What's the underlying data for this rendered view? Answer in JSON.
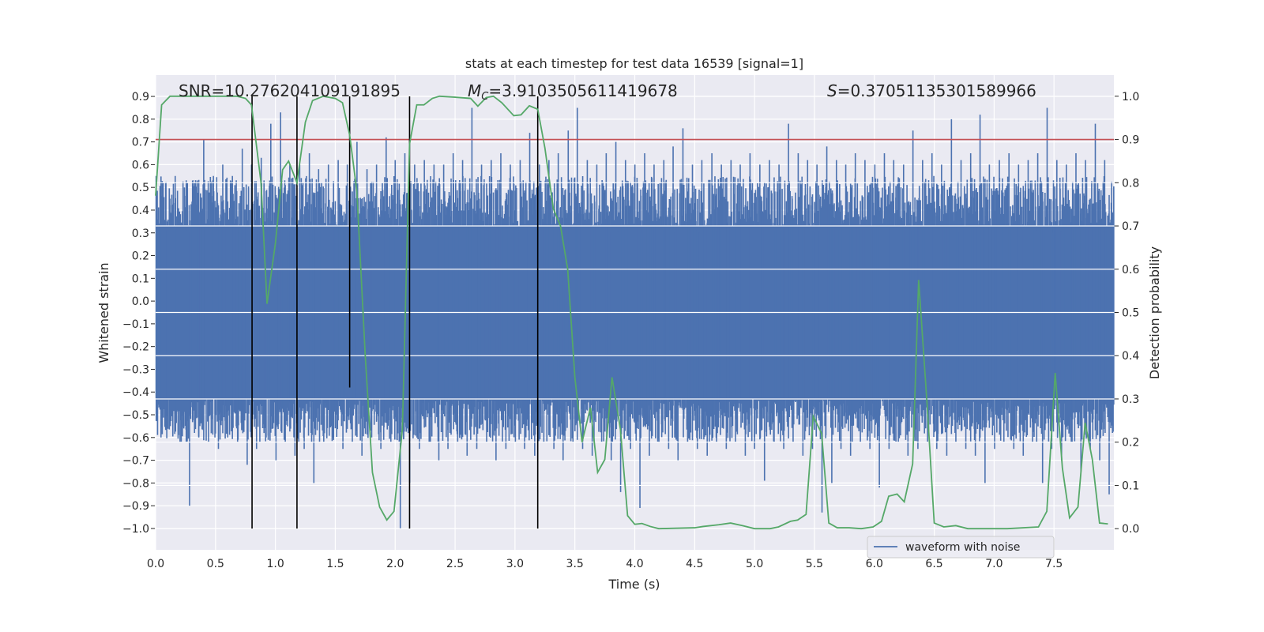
{
  "chart_data": {
    "type": "line",
    "title": "stats at each timestep for test data 16539 [signal=1]",
    "xlabel": "Time (s)",
    "ylabel": "Whitened strain",
    "ylabel_right": "Detection probability",
    "xlim": [
      0,
      8
    ],
    "ylim": [
      -1.094,
      0.994
    ],
    "ylim_right": [
      -0.049,
      1.049
    ],
    "xticks": [
      "0.0",
      "0.5",
      "1.0",
      "1.5",
      "2.0",
      "2.5",
      "3.0",
      "3.5",
      "4.0",
      "4.5",
      "5.0",
      "5.5",
      "6.0",
      "6.5",
      "7.0",
      "7.5"
    ],
    "yticks": [
      "0.9",
      "0.8",
      "0.7",
      "0.6",
      "0.5",
      "0.4",
      "0.3",
      "0.2",
      "0.1",
      "0.0",
      "−0.1",
      "−0.2",
      "−0.3",
      "−0.4",
      "−0.5",
      "−0.6",
      "−0.7",
      "−0.8",
      "−0.9",
      "−1.0"
    ],
    "yticks_right": [
      "1.0",
      "0.9",
      "0.8",
      "0.7",
      "0.6",
      "0.5",
      "0.4",
      "0.3",
      "0.2",
      "0.1",
      "0.0"
    ],
    "grid": true,
    "background": "#eaeaf2",
    "annotations": {
      "snr": "SNR=10.276204109191895",
      "mc_symbol": "M",
      "mc_sub": "C",
      "mc_value": "=3.9103505611419678",
      "s_symbol": "S",
      "s_value": "=0.37051135301589966"
    },
    "legend": {
      "placement": "lower-right",
      "entries": [
        "waveform with noise"
      ]
    },
    "waveform": {
      "name": "waveform with noise",
      "color": "#4c72b0",
      "bin_width_s": 0.08,
      "bin_max": [
        0.55,
        0.52,
        0.55,
        0.5,
        0.52,
        0.71,
        0.55,
        0.6,
        0.55,
        0.67,
        0.6,
        0.63,
        0.78,
        0.83,
        0.6,
        0.6,
        0.65,
        0.58,
        0.6,
        0.62,
        0.6,
        0.7,
        0.58,
        0.6,
        0.72,
        0.62,
        0.65,
        0.6,
        0.62,
        0.6,
        0.6,
        0.65,
        0.62,
        0.85,
        0.6,
        0.62,
        0.65,
        0.6,
        0.62,
        0.74,
        0.6,
        0.62,
        0.65,
        0.75,
        0.85,
        0.62,
        0.6,
        0.65,
        0.7,
        0.62,
        0.6,
        0.65,
        0.6,
        0.62,
        0.68,
        0.76,
        0.6,
        0.62,
        0.65,
        0.6,
        0.62,
        0.6,
        0.65,
        0.6,
        0.62,
        0.6,
        0.78,
        0.65,
        0.62,
        0.6,
        0.68,
        0.62,
        0.6,
        0.65,
        0.62,
        0.6,
        0.65,
        0.62,
        0.6,
        0.75,
        0.62,
        0.65,
        0.6,
        0.8,
        0.62,
        0.65,
        0.82,
        0.6,
        0.62,
        0.65,
        0.6,
        0.62,
        0.65,
        0.85,
        0.62,
        0.6,
        0.65,
        0.62,
        0.78,
        0.62
      ],
      "bin_min": [
        -0.6,
        -0.55,
        -0.62,
        -0.9,
        -0.6,
        -0.62,
        -0.65,
        -0.6,
        -0.62,
        -0.72,
        -0.65,
        -0.6,
        -0.7,
        -0.62,
        -0.68,
        -0.65,
        -0.8,
        -0.62,
        -0.6,
        -0.65,
        -0.62,
        -0.68,
        -0.6,
        -0.65,
        -0.62,
        -1.0,
        -0.8,
        -0.65,
        -0.62,
        -0.7,
        -0.65,
        -0.62,
        -0.68,
        -0.65,
        -0.62,
        -0.7,
        -0.65,
        -0.62,
        -0.65,
        -0.68,
        -0.62,
        -0.65,
        -0.7,
        -0.62,
        -0.65,
        -0.68,
        -0.62,
        -0.7,
        -0.84,
        -0.65,
        -0.91,
        -0.68,
        -0.62,
        -0.65,
        -0.7,
        -0.62,
        -0.65,
        -0.68,
        -0.62,
        -0.65,
        -0.62,
        -0.68,
        -0.65,
        -0.79,
        -0.62,
        -0.65,
        -0.62,
        -0.68,
        -0.65,
        -0.93,
        -0.8,
        -0.65,
        -0.68,
        -0.62,
        -0.65,
        -0.82,
        -0.65,
        -0.62,
        -0.68,
        -0.65,
        -0.62,
        -0.65,
        -0.68,
        -0.62,
        -0.65,
        -0.68,
        -0.8,
        -0.65,
        -0.62,
        -0.65,
        -0.68,
        -0.62,
        -0.8,
        -0.65,
        -0.7,
        -0.62,
        -0.75,
        -0.65,
        -0.7,
        -0.85
      ]
    },
    "detection_probability": {
      "color": "#55a868",
      "points": [
        [
          0.0,
          0.77
        ],
        [
          0.05,
          0.98
        ],
        [
          0.12,
          1.0
        ],
        [
          0.68,
          1.0
        ],
        [
          0.75,
          0.995
        ],
        [
          0.8,
          0.98
        ],
        [
          0.88,
          0.8
        ],
        [
          0.93,
          0.52
        ],
        [
          1.0,
          0.66
        ],
        [
          1.06,
          0.83
        ],
        [
          1.11,
          0.85
        ],
        [
          1.18,
          0.8
        ],
        [
          1.25,
          0.94
        ],
        [
          1.31,
          0.99
        ],
        [
          1.4,
          1.0
        ],
        [
          1.5,
          0.995
        ],
        [
          1.56,
          0.985
        ],
        [
          1.62,
          0.91
        ],
        [
          1.68,
          0.78
        ],
        [
          1.75,
          0.4
        ],
        [
          1.81,
          0.13
        ],
        [
          1.87,
          0.05
        ],
        [
          1.93,
          0.02
        ],
        [
          1.99,
          0.04
        ],
        [
          2.06,
          0.23
        ],
        [
          2.12,
          0.89
        ],
        [
          2.18,
          0.98
        ],
        [
          2.24,
          0.98
        ],
        [
          2.31,
          0.995
        ],
        [
          2.37,
          1.0
        ],
        [
          2.49,
          0.998
        ],
        [
          2.63,
          0.995
        ],
        [
          2.69,
          0.977
        ],
        [
          2.76,
          0.997
        ],
        [
          2.82,
          1.0
        ],
        [
          2.89,
          0.985
        ],
        [
          2.99,
          0.955
        ],
        [
          3.05,
          0.957
        ],
        [
          3.12,
          0.978
        ],
        [
          3.19,
          0.97
        ],
        [
          3.25,
          0.88
        ],
        [
          3.32,
          0.74
        ],
        [
          3.38,
          0.7
        ],
        [
          3.44,
          0.6
        ],
        [
          3.5,
          0.35
        ],
        [
          3.56,
          0.2
        ],
        [
          3.63,
          0.28
        ],
        [
          3.69,
          0.13
        ],
        [
          3.75,
          0.16
        ],
        [
          3.81,
          0.35
        ],
        [
          3.88,
          0.23
        ],
        [
          3.94,
          0.03
        ],
        [
          4.0,
          0.01
        ],
        [
          4.06,
          0.012
        ],
        [
          4.13,
          0.005
        ],
        [
          4.2,
          0.0
        ],
        [
          4.5,
          0.002
        ],
        [
          4.57,
          0.005
        ],
        [
          4.7,
          0.009
        ],
        [
          4.8,
          0.013
        ],
        [
          4.9,
          0.007
        ],
        [
          5.0,
          0.0
        ],
        [
          5.13,
          0.0
        ],
        [
          5.2,
          0.004
        ],
        [
          5.3,
          0.017
        ],
        [
          5.36,
          0.02
        ],
        [
          5.43,
          0.033
        ],
        [
          5.49,
          0.26
        ],
        [
          5.56,
          0.22
        ],
        [
          5.62,
          0.013
        ],
        [
          5.69,
          0.002
        ],
        [
          5.79,
          0.002
        ],
        [
          5.89,
          0.0
        ],
        [
          5.99,
          0.004
        ],
        [
          6.06,
          0.017
        ],
        [
          6.12,
          0.075
        ],
        [
          6.19,
          0.08
        ],
        [
          6.25,
          0.062
        ],
        [
          6.32,
          0.15
        ],
        [
          6.37,
          0.575
        ],
        [
          6.44,
          0.29
        ],
        [
          6.5,
          0.013
        ],
        [
          6.58,
          0.004
        ],
        [
          6.68,
          0.007
        ],
        [
          6.78,
          0.0
        ],
        [
          7.11,
          0.0
        ],
        [
          7.37,
          0.004
        ],
        [
          7.44,
          0.04
        ],
        [
          7.51,
          0.36
        ],
        [
          7.57,
          0.14
        ],
        [
          7.63,
          0.025
        ],
        [
          7.7,
          0.05
        ],
        [
          7.76,
          0.245
        ],
        [
          7.82,
          0.16
        ],
        [
          7.88,
          0.013
        ],
        [
          7.95,
          0.011
        ]
      ]
    },
    "threshold": {
      "value_right_axis": 0.9,
      "color": "#c44e52"
    },
    "vertical_markers": {
      "color": "#000000",
      "lines": [
        [
          0.805,
          -1.0,
          0.9
        ],
        [
          1.18,
          -1.0,
          0.9
        ],
        [
          1.62,
          -0.38,
          0.9
        ],
        [
          2.12,
          -1.0,
          0.9
        ],
        [
          3.19,
          -1.0,
          0.9
        ]
      ]
    }
  }
}
